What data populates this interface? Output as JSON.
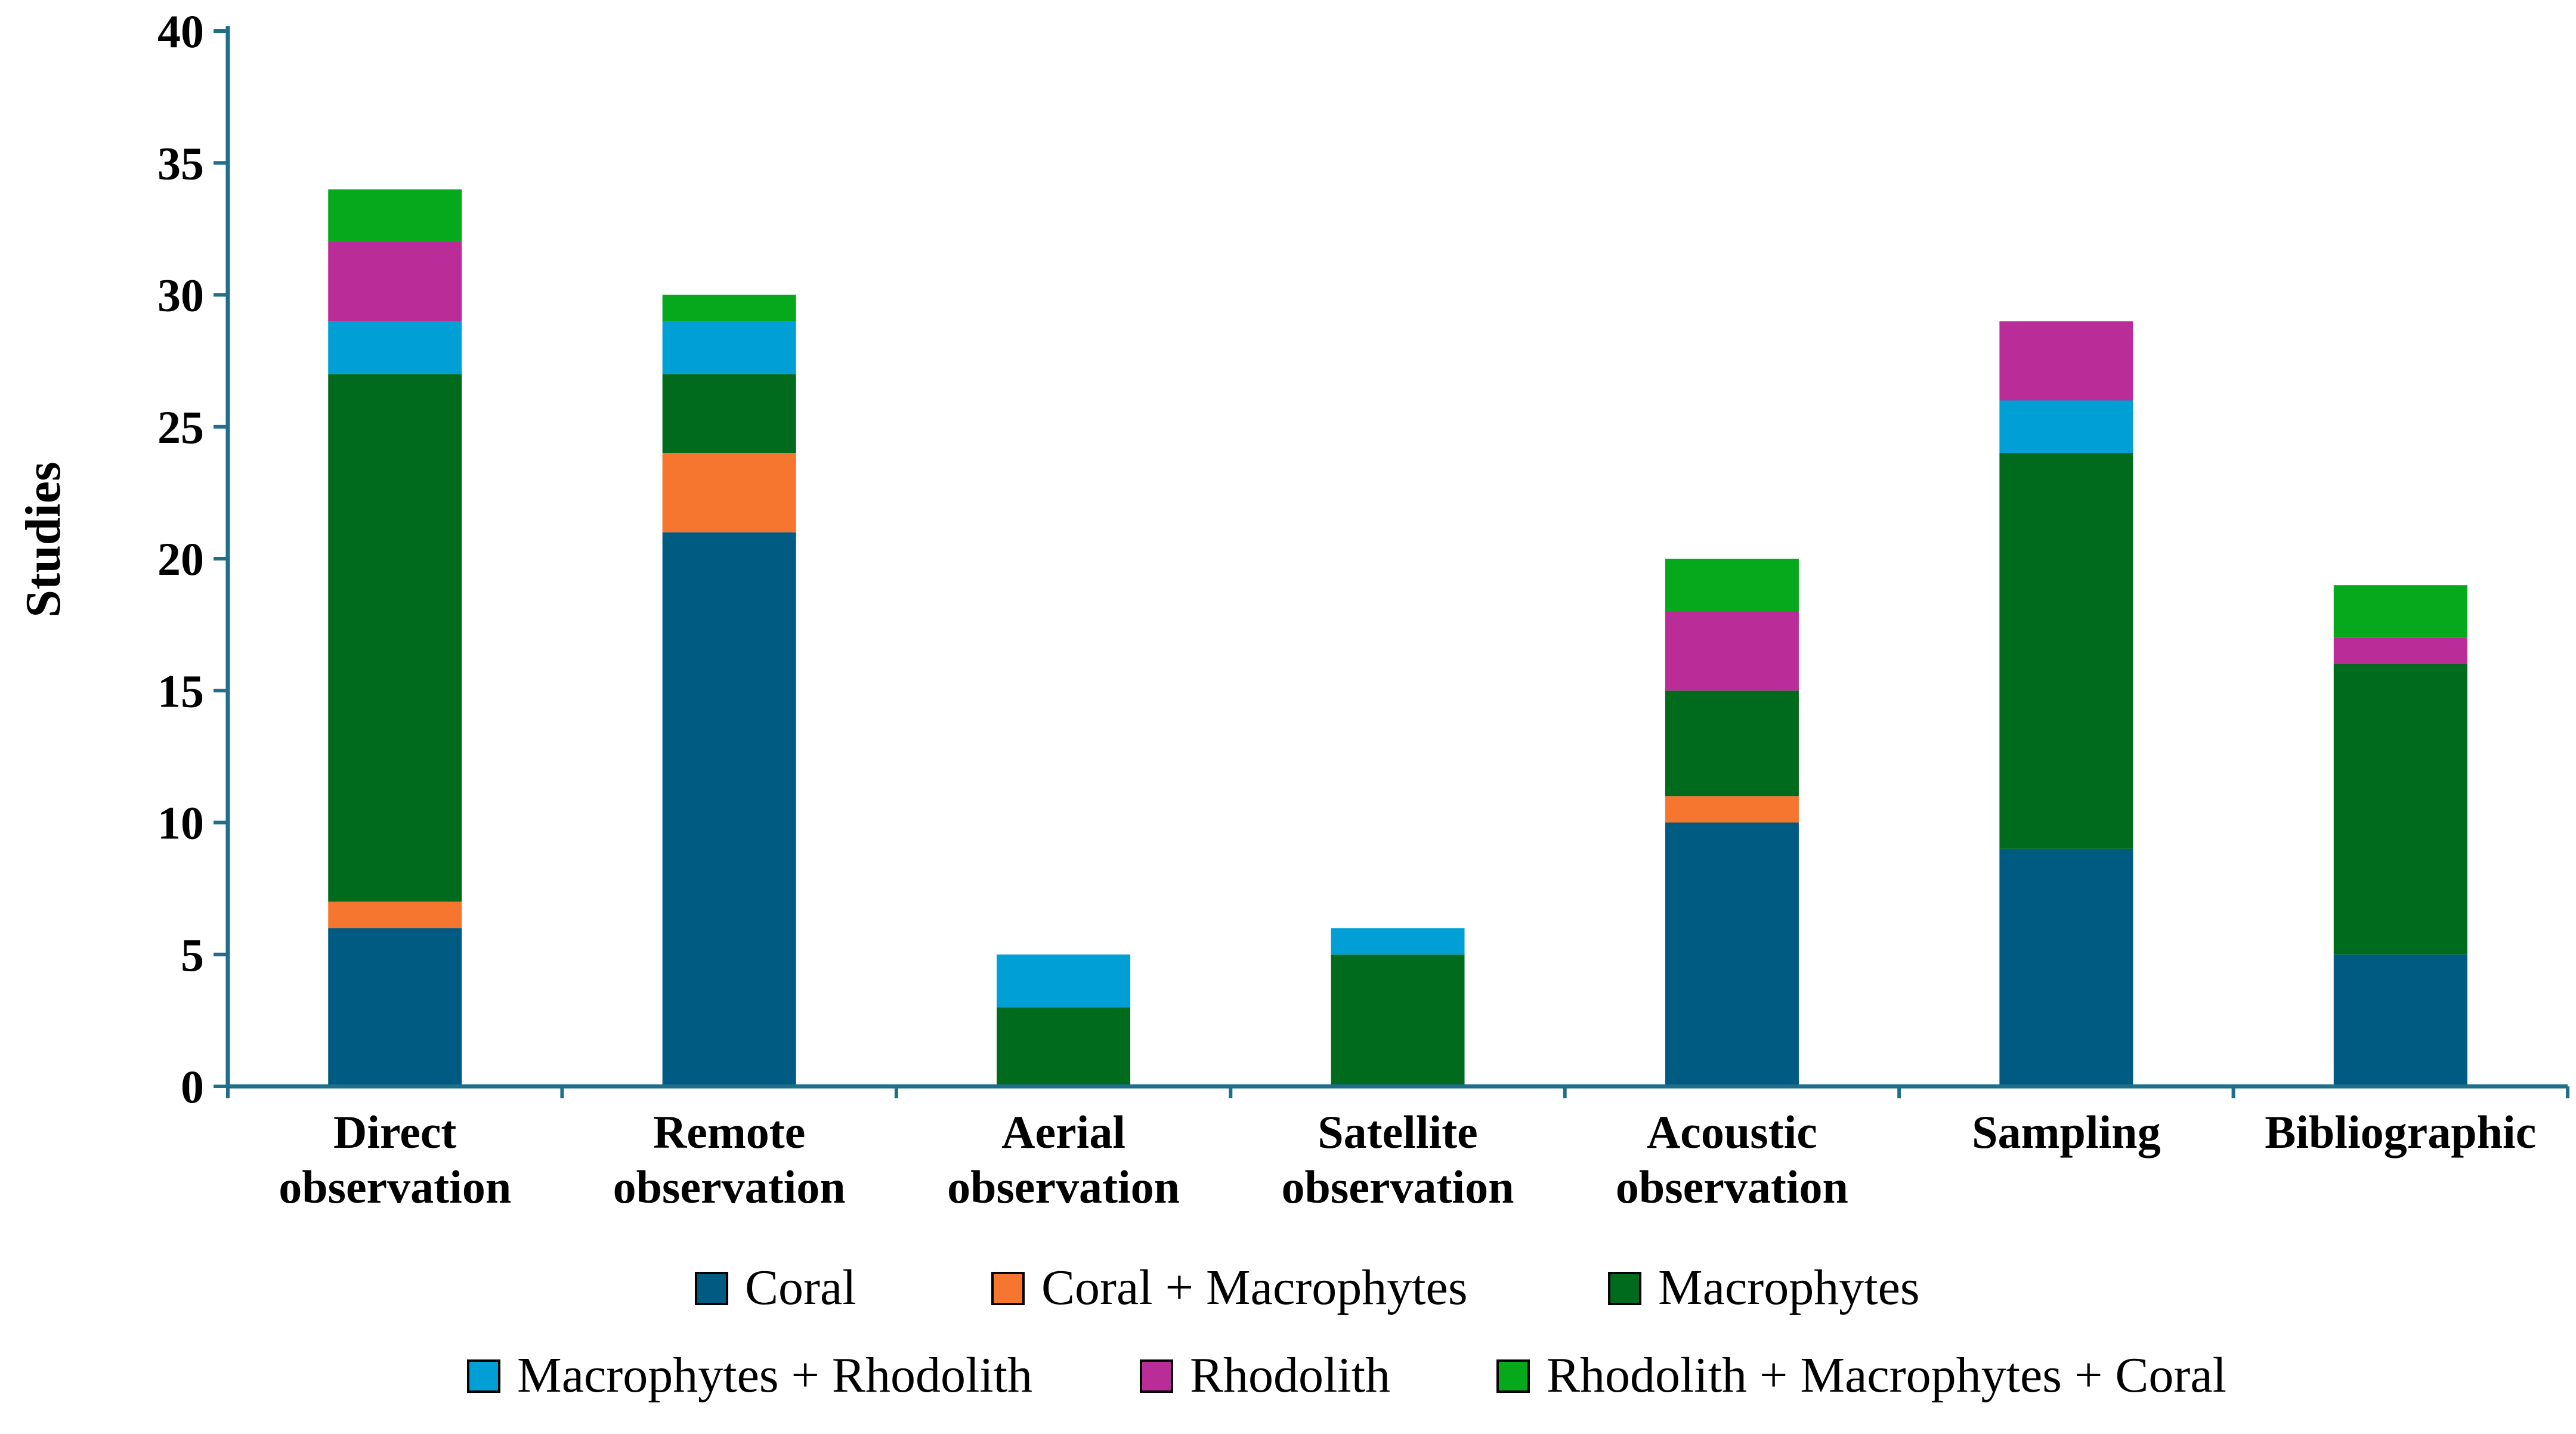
{
  "chart_data": {
    "type": "bar",
    "stacked": true,
    "title": "",
    "xlabel": "",
    "ylabel": "Studies",
    "ylim": [
      0,
      40
    ],
    "yticks": [
      0,
      5,
      10,
      15,
      20,
      25,
      30,
      35,
      40
    ],
    "grid": false,
    "legend_position": "bottom",
    "categories": [
      [
        "Direct",
        "observation"
      ],
      [
        "Remote",
        "observation"
      ],
      [
        "Aerial",
        "observation"
      ],
      [
        "Satellite",
        "observation"
      ],
      [
        "Acoustic",
        "observation"
      ],
      [
        "Sampling"
      ],
      [
        "Bibliographic"
      ]
    ],
    "series": [
      {
        "name": "Coral",
        "color": "#005b82",
        "values": [
          6,
          21,
          0,
          0,
          10,
          9,
          5
        ]
      },
      {
        "name": "Coral + Macrophytes",
        "color": "#f7762f",
        "values": [
          1,
          3,
          0,
          0,
          1,
          0,
          0
        ]
      },
      {
        "name": "Macrophytes",
        "color": "#006a1d",
        "values": [
          20,
          3,
          3,
          5,
          4,
          15,
          11
        ]
      },
      {
        "name": "Macrophytes + Rhodolith",
        "color": "#00a0d6",
        "values": [
          2,
          2,
          2,
          1,
          0,
          2,
          0
        ]
      },
      {
        "name": "Rhodolith",
        "color": "#ba2c97",
        "values": [
          3,
          0,
          0,
          0,
          3,
          3,
          1
        ]
      },
      {
        "name": "Rhodolith + Macrophytes + Coral",
        "color": "#07a91c",
        "values": [
          2,
          1,
          0,
          0,
          2,
          0,
          2
        ]
      }
    ],
    "axis_color": "#1f6f8b"
  }
}
